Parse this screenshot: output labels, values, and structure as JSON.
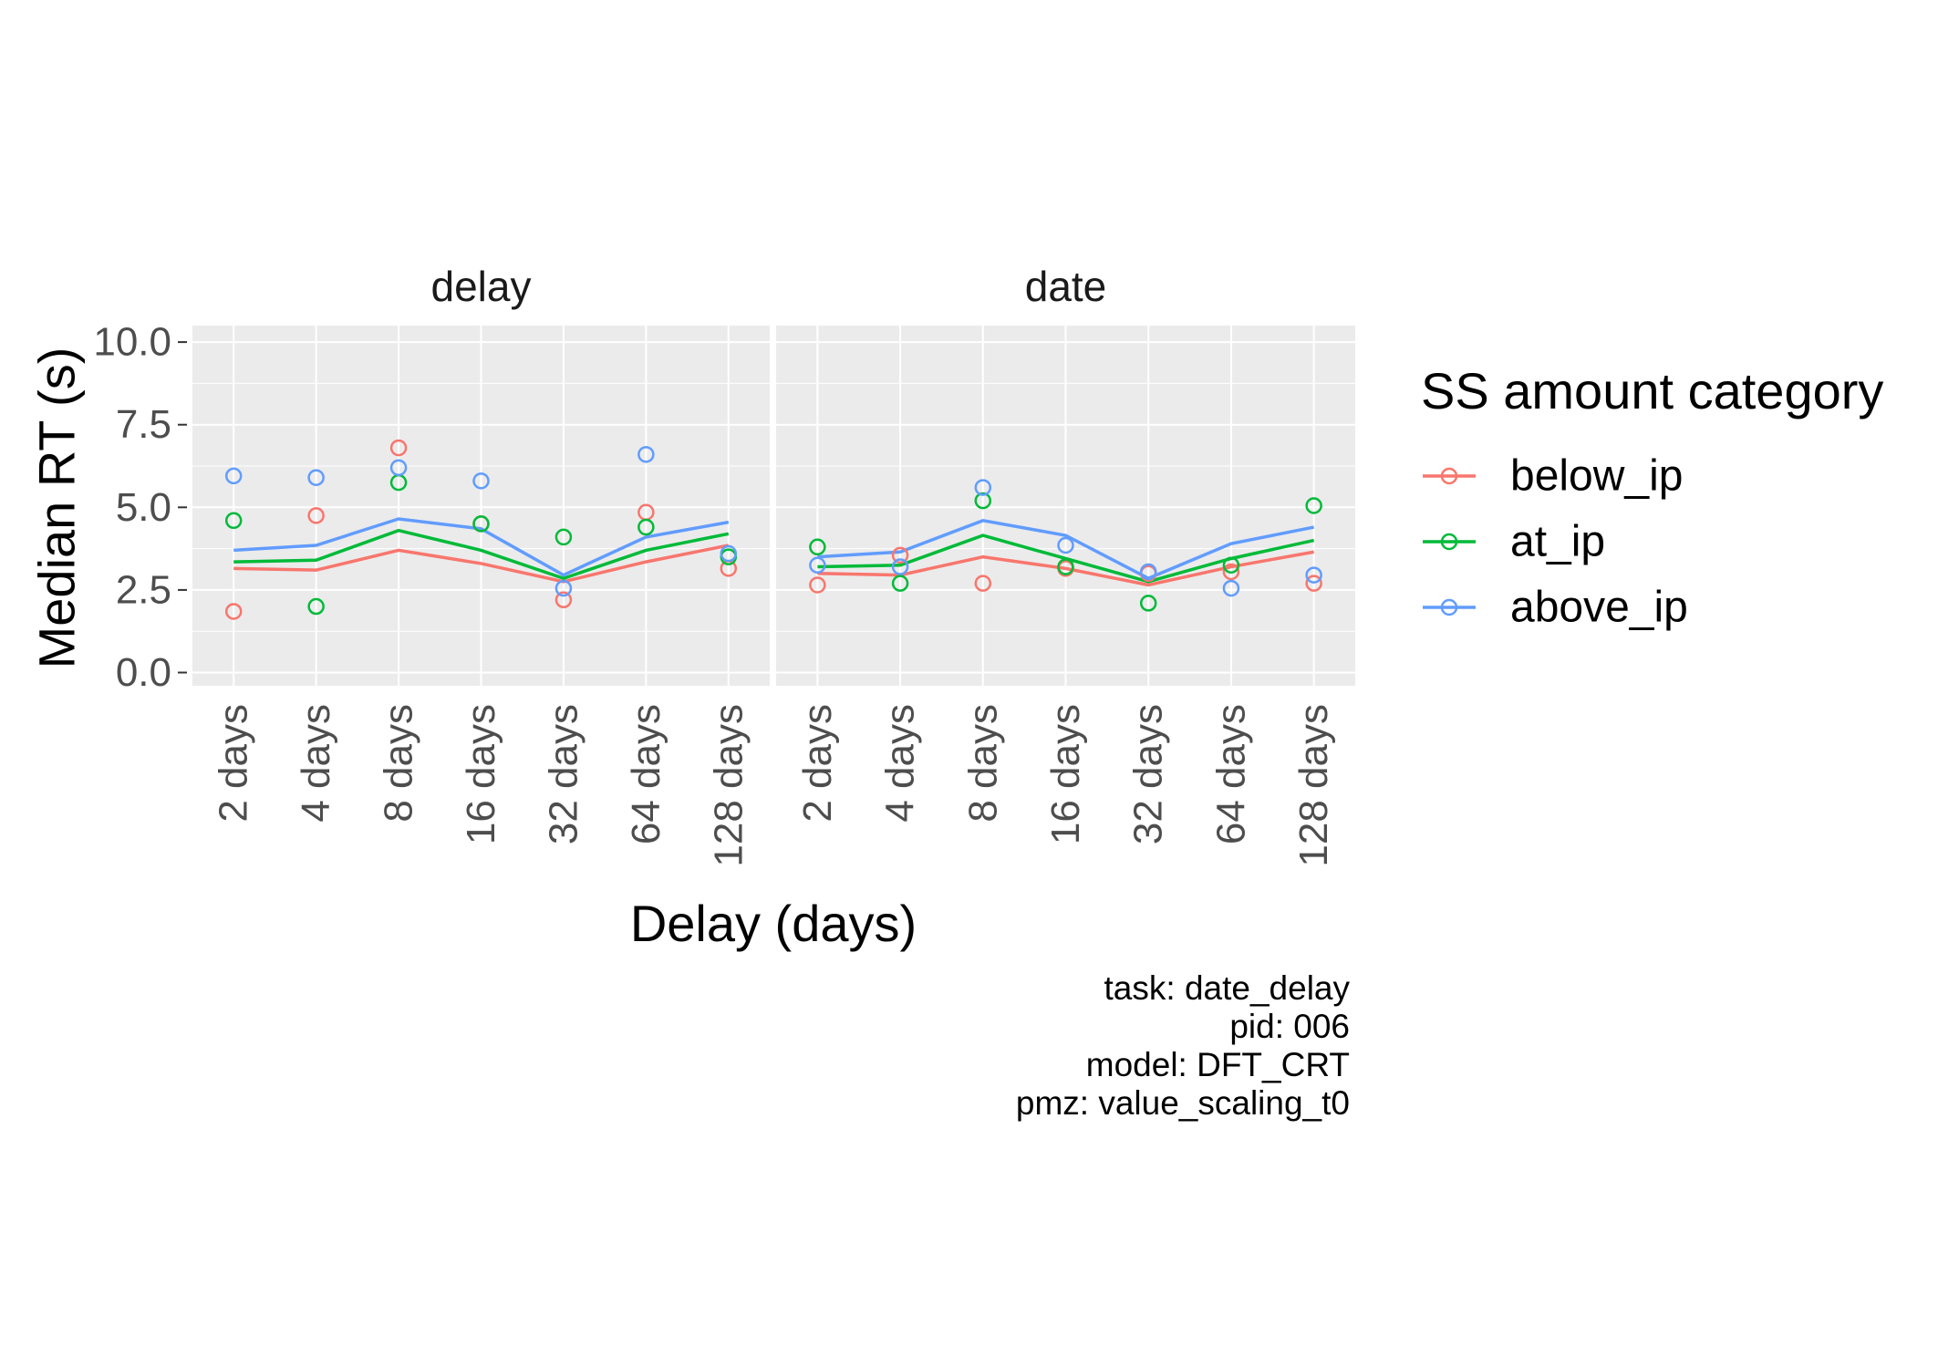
{
  "chart_data": {
    "type": "line",
    "facets": [
      "delay",
      "date"
    ],
    "categories": [
      "2 days",
      "4 days",
      "8 days",
      "16 days",
      "32 days",
      "64 days",
      "128 days"
    ],
    "xlabel": "Delay (days)",
    "ylabel": "Median RT (s)",
    "ylim": [
      -0.4,
      10.5
    ],
    "yticks": [
      "0.0",
      "2.5",
      "5.0",
      "7.5",
      "10.0"
    ],
    "legend": {
      "title": "SS amount category",
      "placement": "right"
    },
    "series": [
      {
        "name": "below_ip",
        "color": "#F8766D",
        "points": {
          "delay": [
            1.85,
            4.75,
            6.8,
            4.5,
            2.2,
            4.85,
            3.15
          ],
          "date": [
            2.65,
            3.55,
            2.7,
            3.15,
            3.0,
            3.05,
            2.7
          ]
        },
        "fit": {
          "delay": [
            3.15,
            3.1,
            3.7,
            3.3,
            2.75,
            3.35,
            3.85
          ],
          "date": [
            3.0,
            2.95,
            3.5,
            3.15,
            2.65,
            3.2,
            3.65
          ]
        }
      },
      {
        "name": "at_ip",
        "color": "#00BA38",
        "points": {
          "delay": [
            4.6,
            2.0,
            5.75,
            4.5,
            4.1,
            4.4,
            3.5
          ],
          "date": [
            3.8,
            2.7,
            5.2,
            3.2,
            2.1,
            3.25,
            5.05
          ]
        },
        "fit": {
          "delay": [
            3.35,
            3.4,
            4.3,
            3.7,
            2.85,
            3.7,
            4.2
          ],
          "date": [
            3.2,
            3.25,
            4.15,
            3.45,
            2.75,
            3.45,
            4.0
          ]
        }
      },
      {
        "name": "above_ip",
        "color": "#619CFF",
        "points": {
          "delay": [
            5.95,
            5.9,
            6.2,
            5.8,
            2.55,
            6.6,
            3.6
          ],
          "date": [
            3.25,
            3.2,
            5.6,
            3.85,
            3.05,
            2.55,
            2.95
          ]
        },
        "fit": {
          "delay": [
            3.7,
            3.85,
            4.65,
            4.35,
            2.95,
            4.1,
            4.55
          ],
          "date": [
            3.5,
            3.65,
            4.6,
            4.15,
            2.85,
            3.9,
            4.4
          ]
        }
      }
    ],
    "grid": true,
    "caption": [
      "task: date_delay",
      "pid: 006",
      "model: DFT_CRT",
      "pmz: value_scaling_t0"
    ]
  }
}
